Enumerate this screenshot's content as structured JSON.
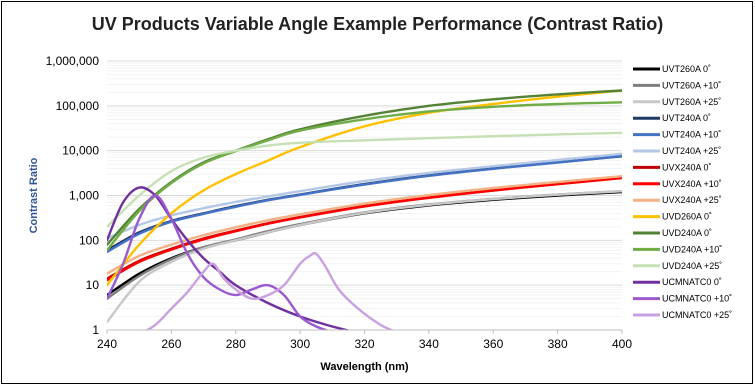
{
  "chart_data": {
    "type": "line",
    "title": "UV Products Variable Angle Example Performance (Contrast Ratio)",
    "xlabel": "Wavelength (nm)",
    "ylabel": "Contrast Ratio",
    "xlim": [
      240,
      400
    ],
    "ylim": [
      1,
      1000000
    ],
    "yscale": "log",
    "x_ticks": [
      240,
      260,
      280,
      300,
      320,
      340,
      360,
      380,
      400
    ],
    "y_ticks": [
      1,
      10,
      100,
      1000,
      10000,
      100000,
      1000000
    ],
    "y_tick_labels": [
      "1",
      "10",
      "100",
      "1,000",
      "10,000",
      "100,000",
      "1,000,000"
    ],
    "grid": "horizontal",
    "legend_position": "right",
    "series": [
      {
        "name": "UVT260A 0˚",
        "color": "#000000",
        "x": [
          240,
          250,
          260,
          270,
          280,
          290,
          300,
          320,
          340,
          360,
          380,
          400
        ],
        "values": [
          6,
          18,
          40,
          70,
          100,
          150,
          220,
          400,
          600,
          800,
          1000,
          1200
        ]
      },
      {
        "name": "UVT260A +10˚",
        "color": "#7f7f7f",
        "x": [
          240,
          250,
          260,
          270,
          280,
          290,
          300,
          320,
          340,
          360,
          380,
          400
        ],
        "values": [
          5,
          16,
          38,
          70,
          105,
          160,
          230,
          420,
          630,
          840,
          1050,
          1250
        ]
      },
      {
        "name": "UVT260A +25˚",
        "color": "#c8c8c8",
        "x": [
          240,
          250,
          260,
          270,
          280,
          290,
          300,
          320,
          340,
          360,
          380,
          400
        ],
        "values": [
          1.5,
          12,
          33,
          65,
          100,
          150,
          220,
          410,
          620,
          830,
          1040,
          1250
        ]
      },
      {
        "name": "UVT240A 0˚",
        "color": "#1f3864",
        "x": [
          240,
          250,
          260,
          270,
          280,
          290,
          300,
          320,
          340,
          360,
          380,
          400
        ],
        "values": [
          60,
          150,
          270,
          400,
          580,
          800,
          1050,
          1800,
          2800,
          4000,
          5500,
          7500
        ]
      },
      {
        "name": "UVT240A +10˚",
        "color": "#4472c4",
        "x": [
          240,
          250,
          260,
          270,
          280,
          290,
          300,
          320,
          340,
          360,
          380,
          400
        ],
        "values": [
          55,
          140,
          260,
          390,
          560,
          780,
          1030,
          1750,
          2750,
          3950,
          5450,
          7600
        ]
      },
      {
        "name": "UVT240A +25˚",
        "color": "#b4c7e7",
        "x": [
          240,
          250,
          260,
          270,
          280,
          290,
          300,
          320,
          340,
          360,
          380,
          400
        ],
        "values": [
          110,
          220,
          360,
          520,
          720,
          950,
          1250,
          2100,
          3200,
          4500,
          6200,
          8500
        ]
      },
      {
        "name": "UVX240A 0˚",
        "color": "#c00000",
        "x": [
          240,
          250,
          260,
          270,
          280,
          290,
          300,
          320,
          340,
          360,
          380,
          400
        ],
        "values": [
          14,
          35,
          65,
          110,
          165,
          240,
          330,
          580,
          900,
          1300,
          1800,
          2500
        ]
      },
      {
        "name": "UVX240A +10˚",
        "color": "#ff0000",
        "x": [
          240,
          250,
          260,
          270,
          280,
          290,
          300,
          320,
          340,
          360,
          380,
          400
        ],
        "values": [
          13,
          33,
          62,
          105,
          160,
          235,
          325,
          570,
          890,
          1290,
          1790,
          2450
        ]
      },
      {
        "name": "UVX240A +25˚",
        "color": "#f4b183",
        "x": [
          240,
          250,
          260,
          270,
          280,
          290,
          300,
          320,
          340,
          360,
          380,
          400
        ],
        "values": [
          18,
          45,
          80,
          130,
          195,
          280,
          380,
          660,
          1020,
          1470,
          2000,
          2700
        ]
      },
      {
        "name": "UVD260A 0˚",
        "color": "#ffc000",
        "x": [
          240,
          250,
          260,
          270,
          280,
          290,
          300,
          320,
          340,
          360,
          380,
          400
        ],
        "values": [
          10,
          80,
          400,
          1300,
          3000,
          6000,
          12000,
          35000,
          70000,
          110000,
          160000,
          220000
        ]
      },
      {
        "name": "UVD240A 0˚",
        "color": "#548235",
        "x": [
          240,
          250,
          260,
          270,
          280,
          290,
          300,
          320,
          340,
          360,
          380,
          400
        ],
        "values": [
          80,
          500,
          2000,
          5500,
          10000,
          18000,
          30000,
          60000,
          100000,
          140000,
          180000,
          220000
        ]
      },
      {
        "name": "UVD240A +10˚",
        "color": "#70ad47",
        "x": [
          240,
          250,
          260,
          270,
          280,
          290,
          300,
          320,
          340,
          360,
          380,
          400
        ],
        "values": [
          60,
          450,
          1900,
          5200,
          9800,
          17000,
          28000,
          50000,
          75000,
          95000,
          110000,
          120000
        ]
      },
      {
        "name": "UVD240A +25˚",
        "color": "#c5e0b4",
        "x": [
          240,
          250,
          260,
          270,
          280,
          290,
          300,
          320,
          340,
          360,
          380,
          400
        ],
        "values": [
          200,
          1000,
          3500,
          7000,
          10000,
          13000,
          15000,
          17000,
          19000,
          21000,
          23000,
          25000
        ]
      },
      {
        "name": "UCMNATC0 0˚",
        "color": "#7030a0",
        "x": [
          240,
          245,
          250,
          255,
          260,
          265,
          270,
          275,
          280,
          290,
          300,
          310,
          320
        ],
        "values": [
          100,
          700,
          1500,
          1000,
          300,
          100,
          40,
          20,
          10,
          4,
          2,
          1.2,
          0.8
        ]
      },
      {
        "name": "UCMNATC0 +10˚",
        "color": "#9b59d0",
        "x": [
          240,
          245,
          250,
          255,
          260,
          265,
          270,
          275,
          280,
          285,
          290,
          295,
          300,
          305,
          310
        ],
        "values": [
          5,
          30,
          300,
          1000,
          300,
          50,
          15,
          8,
          6,
          8,
          10,
          6,
          2,
          1.2,
          0.9
        ]
      },
      {
        "name": "UCMNATC0 +25˚",
        "color": "#c9a0e0",
        "x": [
          250,
          255,
          260,
          265,
          270,
          273,
          276,
          280,
          285,
          290,
          295,
          300,
          303,
          305,
          308,
          312,
          318,
          325,
          330
        ],
        "values": [
          0.8,
          1.3,
          3,
          7,
          20,
          30,
          15,
          8,
          5,
          6,
          10,
          30,
          45,
          50,
          25,
          8,
          3,
          1.3,
          0.9
        ]
      }
    ]
  }
}
